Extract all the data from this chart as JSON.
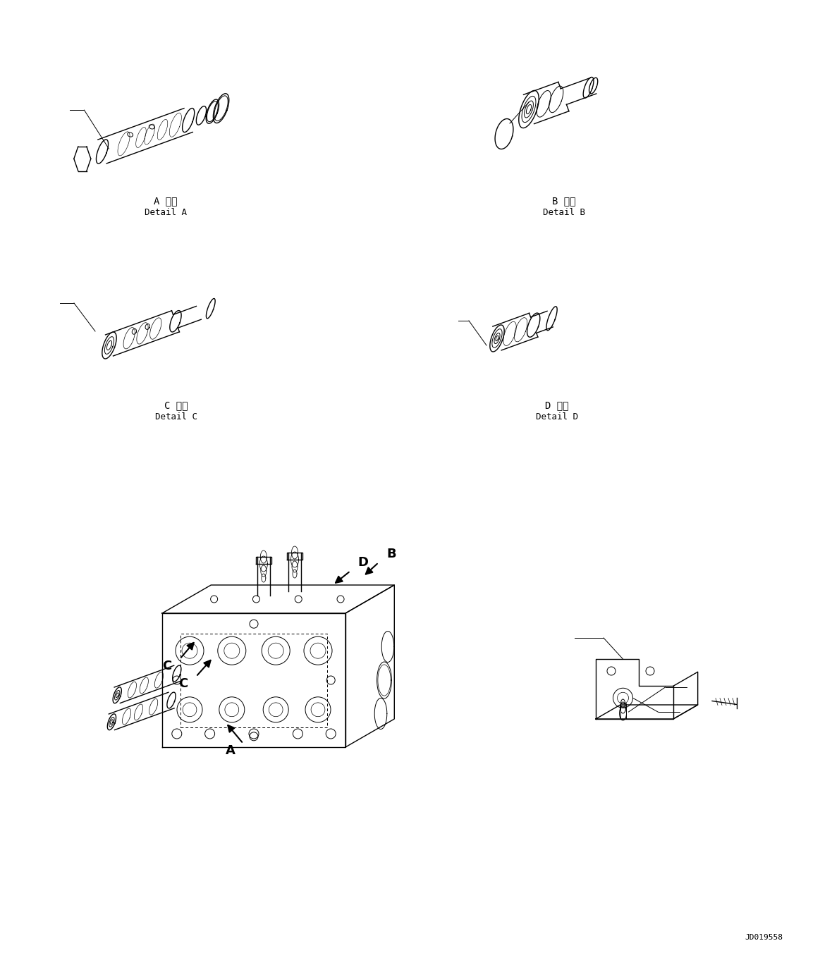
{
  "fig_width": 11.63,
  "fig_height": 13.62,
  "dpi": 100,
  "bg_color": "#ffffff",
  "line_color": "#000000",
  "label_A_jap": "A 詳細",
  "label_A_eng": "Detail A",
  "label_B_jap": "B 詳細",
  "label_B_eng": "Detail B",
  "label_C_jap": "C 詳細",
  "label_C_eng": "Detail C",
  "label_D_jap": "D 詳細",
  "label_D_eng": "Detail D",
  "doc_number": "JD019558",
  "lw_thin": 0.7,
  "lw_med": 1.0,
  "lw_thick": 1.4,
  "font_label": 10,
  "font_sub": 9,
  "font_doc": 8
}
